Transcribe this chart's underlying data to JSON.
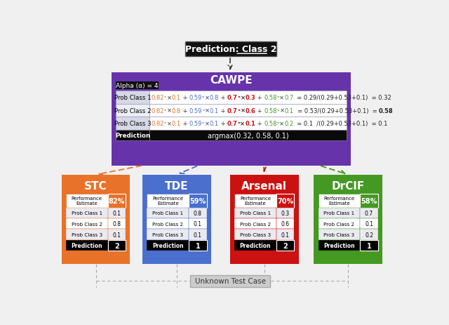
{
  "bg_color": "#f0f0f0",
  "title": "Prediction: Class 2",
  "cawpe_title": "CAWPE",
  "alpha_label": "Alpha (α) = 4",
  "cawpe_pred": "argmax(0.32, 0.58, 0.1)",
  "cawpe_box_color": "#6633aa",
  "pred_box_color": "#111111",
  "alpha_box_color": "#111111",
  "classifiers": [
    {
      "name": "STC",
      "color": "#e8722a",
      "perf": "82%",
      "prob1": "0.1",
      "prob2": "0.8",
      "prob3": "0.1",
      "pred": "2"
    },
    {
      "name": "TDE",
      "color": "#4a6fcc",
      "perf": "59%",
      "prob1": "0.8",
      "prob2": "0.1",
      "prob3": "0.1",
      "pred": "1"
    },
    {
      "name": "Arsenal",
      "color": "#cc1111",
      "perf": "70%",
      "prob1": "0.3",
      "prob2": "0.6",
      "prob3": "0.1",
      "pred": "2"
    },
    {
      "name": "DrCIF",
      "color": "#449922",
      "perf": "58%",
      "prob1": "0.7",
      "prob2": "0.1",
      "prob3": "0.2",
      "pred": "1"
    }
  ],
  "unknown_label": "Unknown Test Case",
  "stc_c": "#e8722a",
  "tde_c": "#4a6fcc",
  "ars_c": "#cc1111",
  "drc_c": "#449922"
}
